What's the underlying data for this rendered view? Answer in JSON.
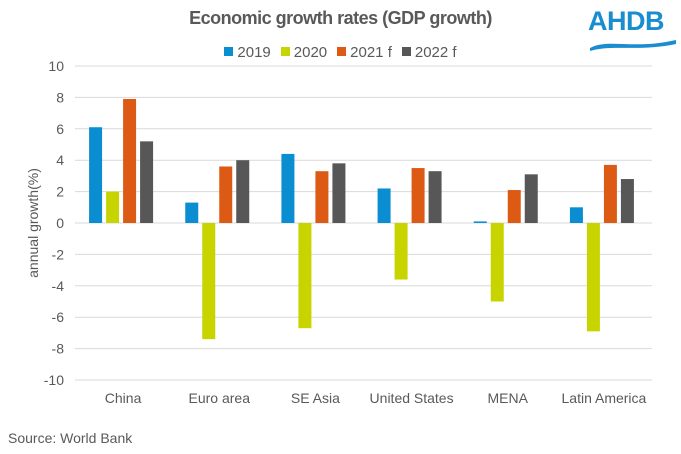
{
  "logo": {
    "text": "AHDB",
    "color": "#1a8dd0"
  },
  "source": "Source: World Bank",
  "chart_data": {
    "type": "bar",
    "title": "Economic growth rates (GDP growth)",
    "xlabel": "",
    "ylabel": "annual growth(%)",
    "ylim": [
      -10,
      10
    ],
    "yticks": [
      10,
      8,
      6,
      4,
      2,
      0,
      -2,
      -4,
      -6,
      -8,
      -10
    ],
    "grid": true,
    "legend_position": "top-center",
    "categories": [
      "China",
      "Euro area",
      "SE Asia",
      "United States",
      "MENA",
      "Latin America"
    ],
    "series": [
      {
        "name": "2019",
        "color": "#0b8ed1",
        "values": [
          6.1,
          1.3,
          4.4,
          2.2,
          0.1,
          1.0
        ]
      },
      {
        "name": "2020",
        "color": "#c8d400",
        "values": [
          2.0,
          -7.4,
          -6.7,
          -3.6,
          -5.0,
          -6.9
        ]
      },
      {
        "name": "2021 f",
        "color": "#dd5a15",
        "values": [
          7.9,
          3.6,
          3.3,
          3.5,
          2.1,
          3.7
        ]
      },
      {
        "name": "2022 f",
        "color": "#575757",
        "values": [
          5.2,
          4.0,
          3.8,
          3.3,
          3.1,
          2.8
        ]
      }
    ]
  }
}
